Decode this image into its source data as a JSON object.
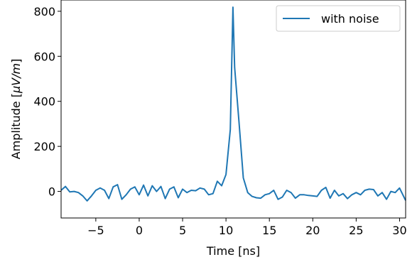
{
  "chart_data": {
    "type": "line",
    "xlabel": "Time [ns]",
    "ylabel": "Amplitude [μV/m]",
    "xlim": [
      -9,
      30.7
    ],
    "ylim": [
      -118,
      850
    ],
    "xticks": [
      -5,
      0,
      5,
      10,
      15,
      20,
      25,
      30
    ],
    "yticks": [
      0,
      200,
      400,
      600,
      800
    ],
    "grid": false,
    "legend_position": "top-right",
    "line_color": "#1f77b4",
    "series": [
      {
        "name": "with noise",
        "x": [
          -9.0,
          -8.5,
          -8.0,
          -7.5,
          -7.0,
          -6.5,
          -6.0,
          -5.5,
          -5.0,
          -4.5,
          -4.0,
          -3.5,
          -3.0,
          -2.5,
          -2.0,
          -1.5,
          -1.0,
          -0.5,
          0.0,
          0.5,
          1.0,
          1.5,
          2.0,
          2.5,
          3.0,
          3.5,
          4.0,
          4.5,
          5.0,
          5.5,
          6.0,
          6.5,
          7.0,
          7.5,
          8.0,
          8.5,
          9.0,
          9.5,
          10.0,
          10.5,
          10.8,
          11.0,
          11.5,
          12.0,
          12.5,
          13.0,
          13.5,
          14.0,
          14.5,
          15.0,
          15.5,
          16.0,
          16.5,
          17.0,
          17.5,
          18.0,
          18.5,
          19.0,
          19.5,
          20.0,
          20.5,
          21.0,
          21.5,
          22.0,
          22.5,
          23.0,
          23.5,
          24.0,
          24.5,
          25.0,
          25.5,
          26.0,
          26.5,
          27.0,
          27.5,
          28.0,
          28.5,
          29.0,
          29.5,
          30.0,
          30.7
        ],
        "y": [
          5,
          22,
          -2,
          0,
          -5,
          -20,
          -42,
          -20,
          5,
          15,
          5,
          -32,
          20,
          30,
          -35,
          -15,
          10,
          20,
          -15,
          28,
          -20,
          25,
          0,
          22,
          -32,
          10,
          20,
          -28,
          10,
          -5,
          5,
          3,
          15,
          10,
          -15,
          -10,
          45,
          25,
          75,
          275,
          818,
          550,
          310,
          60,
          -5,
          -22,
          -28,
          -30,
          -15,
          -10,
          5,
          -35,
          -25,
          5,
          -5,
          -30,
          -15,
          -15,
          -18,
          -20,
          -22,
          5,
          18,
          -30,
          5,
          -20,
          -10,
          -32,
          -15,
          -5,
          -15,
          5,
          10,
          8,
          -20,
          -5,
          -35,
          0,
          -5,
          15,
          -40
        ]
      }
    ]
  }
}
